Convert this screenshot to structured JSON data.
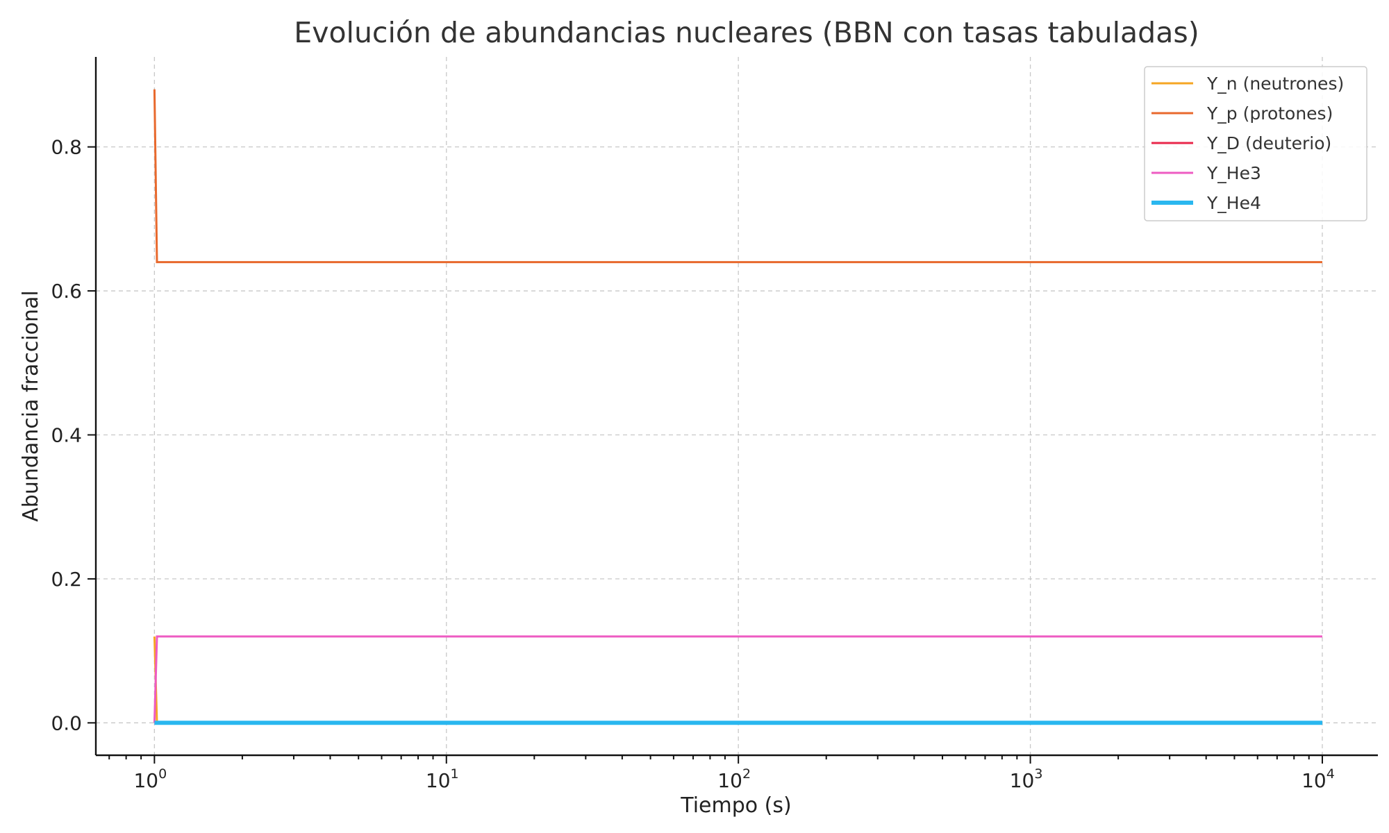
{
  "chart_data": {
    "type": "line",
    "title": "Evolución de abundancias nucleares (BBN con tasas tabuladas)",
    "xlabel": "Tiempo (s)",
    "ylabel": "Abundancia fraccional",
    "xscale": "log",
    "xlim": [
      0.63,
      15500
    ],
    "ylim": [
      -0.045,
      0.925
    ],
    "x_ticks": [
      {
        "value": 1,
        "base": "10",
        "exp": "0"
      },
      {
        "value": 10,
        "base": "10",
        "exp": "1"
      },
      {
        "value": 100,
        "base": "10",
        "exp": "2"
      },
      {
        "value": 1000,
        "base": "10",
        "exp": "3"
      },
      {
        "value": 10000,
        "base": "10",
        "exp": "4"
      }
    ],
    "y_ticks": [
      {
        "value": 0.0,
        "label": "0.0"
      },
      {
        "value": 0.2,
        "label": "0.2"
      },
      {
        "value": 0.4,
        "label": "0.4"
      },
      {
        "value": 0.6,
        "label": "0.6"
      },
      {
        "value": 0.8,
        "label": "0.8"
      }
    ],
    "grid": true,
    "legend_position": "top-right",
    "series": [
      {
        "name": "Y_n (neutrones)",
        "color": "#f5a623",
        "width": 3,
        "x": [
          1,
          1.02,
          10000
        ],
        "y": [
          0.12,
          0.0,
          0.0
        ]
      },
      {
        "name": "Y_p (protones)",
        "color": "#e8692d",
        "width": 3,
        "x": [
          1,
          1.02,
          10000
        ],
        "y": [
          0.88,
          0.64,
          0.64
        ]
      },
      {
        "name": "Y_D (deuterio)",
        "color": "#e8264a",
        "width": 3,
        "x": [
          1,
          1.02,
          10000
        ],
        "y": [
          0.0,
          0.0,
          0.0
        ]
      },
      {
        "name": "Y_He3",
        "color": "#ee5bc2",
        "width": 3,
        "x": [
          1,
          1.02,
          10000
        ],
        "y": [
          0.0,
          0.12,
          0.12
        ]
      },
      {
        "name": "Y_He4",
        "color": "#2ab7ef",
        "width": 6,
        "x": [
          1,
          1.02,
          10000
        ],
        "y": [
          0.0,
          0.0,
          0.0
        ]
      }
    ]
  }
}
